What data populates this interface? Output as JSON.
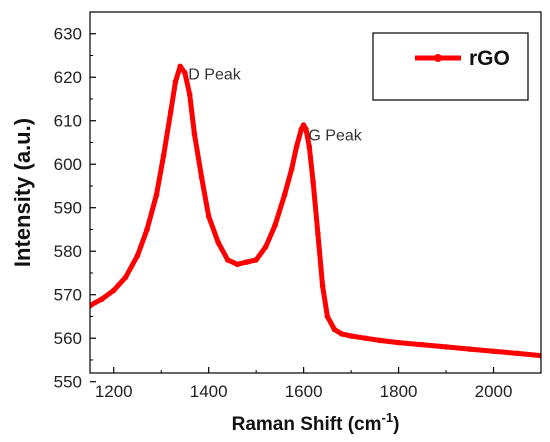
{
  "chart_data": {
    "type": "line",
    "title": "",
    "xlabel": "Raman Shift (cm",
    "xlabel_sup": "-1",
    "xlabel_close": ")",
    "ylabel": "Intensity (a.u.)",
    "xlim": [
      1150,
      2100
    ],
    "ylim": [
      552,
      635
    ],
    "xticks": [
      1200,
      1400,
      1600,
      1800,
      2000
    ],
    "yticks": [
      550,
      560,
      570,
      580,
      590,
      600,
      610,
      620,
      630
    ],
    "grid": false,
    "legend_placement": "top-right",
    "series": [
      {
        "name": "rGO",
        "color": "#ff0000",
        "x": [
          1150,
          1175,
          1200,
          1225,
          1250,
          1270,
          1290,
          1305,
          1320,
          1330,
          1340,
          1350,
          1360,
          1370,
          1385,
          1400,
          1420,
          1440,
          1460,
          1480,
          1500,
          1520,
          1540,
          1560,
          1575,
          1585,
          1595,
          1600,
          1605,
          1612,
          1620,
          1630,
          1640,
          1650,
          1665,
          1680,
          1700,
          1730,
          1760,
          1800,
          1850,
          1900,
          1950,
          2000,
          2050,
          2100
        ],
        "y": [
          567.5,
          569,
          571,
          574,
          579,
          585,
          593,
          602,
          612,
          619,
          622.5,
          621,
          616,
          607,
          597,
          588,
          582,
          578,
          577,
          577.5,
          578,
          581,
          586,
          593,
          599,
          604,
          608,
          609,
          608,
          604,
          596,
          584,
          572,
          565,
          562,
          561,
          560.5,
          560,
          559.5,
          559,
          558.5,
          558,
          557.5,
          557,
          556.5,
          556
        ]
      }
    ],
    "annotations": [
      {
        "text": "D Peak",
        "x": 1357,
        "y": 619.5
      },
      {
        "text": "G Peak",
        "x": 1610,
        "y": 605.5
      }
    ]
  }
}
